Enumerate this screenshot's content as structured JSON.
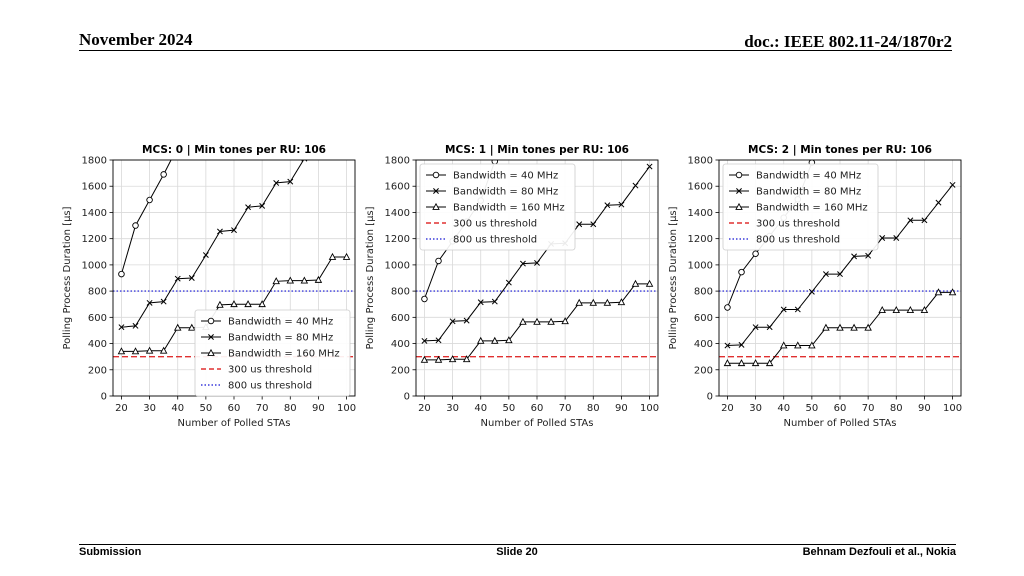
{
  "header": {
    "date": "November 2024",
    "doc": "doc.: IEEE 802.11-24/1870r2"
  },
  "footer": {
    "left": "Submission",
    "center": "Slide 20",
    "right": "Behnam Dezfouli et al., Nokia"
  },
  "chart_data": [
    {
      "type": "line",
      "title": "MCS: 0 | Min tones per RU: 106",
      "xlabel": "Number of Polled STAs",
      "ylabel": "Polling Process Duration [μs]",
      "xlim": [
        17,
        103
      ],
      "ylim": [
        0,
        1800
      ],
      "xticks": [
        20,
        30,
        40,
        50,
        60,
        70,
        80,
        90,
        100
      ],
      "yticks": [
        0,
        200,
        400,
        600,
        800,
        1000,
        1200,
        1400,
        1600,
        1800
      ],
      "grid": true,
      "legend_position": "lower-right",
      "series": [
        {
          "name": "Bandwidth = 40 MHz",
          "marker": "circle",
          "color": "#000000",
          "x": [
            20,
            25,
            30,
            35,
            40
          ],
          "y": [
            930,
            1300,
            1495,
            1690,
            1900
          ]
        },
        {
          "name": "Bandwidth = 80 MHz",
          "marker": "x",
          "color": "#000000",
          "x": [
            20,
            25,
            30,
            35,
            40,
            45,
            50,
            55,
            60,
            65,
            70,
            75,
            80,
            85
          ],
          "y": [
            525,
            535,
            710,
            720,
            895,
            900,
            1075,
            1255,
            1265,
            1440,
            1450,
            1625,
            1635,
            1810
          ]
        },
        {
          "name": "Bandwidth = 160 MHz",
          "marker": "triangle",
          "color": "#000000",
          "x": [
            20,
            25,
            30,
            35,
            40,
            45,
            50,
            55,
            60,
            65,
            70,
            75,
            80,
            85,
            90,
            95,
            100
          ],
          "y": [
            340,
            340,
            345,
            345,
            520,
            520,
            525,
            695,
            700,
            700,
            700,
            875,
            880,
            880,
            885,
            1060,
            1060
          ]
        }
      ],
      "thresholds": [
        {
          "name": "300 us threshold",
          "value": 300,
          "style": "dashed",
          "color": "#e03030"
        },
        {
          "name": "800 us threshold",
          "value": 800,
          "style": "dotted",
          "color": "#3b3bdb"
        }
      ]
    },
    {
      "type": "line",
      "title": "MCS: 1 | Min tones per RU: 106",
      "xlabel": "Number of Polled STAs",
      "ylabel": "Polling Process Duration [μs]",
      "xlim": [
        17,
        103
      ],
      "ylim": [
        0,
        1800
      ],
      "xticks": [
        20,
        30,
        40,
        50,
        60,
        70,
        80,
        90,
        100
      ],
      "yticks": [
        0,
        200,
        400,
        600,
        800,
        1000,
        1200,
        1400,
        1600,
        1800
      ],
      "grid": true,
      "legend_position": "upper-left",
      "series": [
        {
          "name": "Bandwidth = 40 MHz",
          "marker": "circle",
          "color": "#000000",
          "x": [
            20,
            25,
            30,
            35,
            40,
            45,
            50
          ],
          "y": [
            740,
            1030,
            1180,
            1330,
            1490,
            1790,
            1940
          ]
        },
        {
          "name": "Bandwidth = 80 MHz",
          "marker": "x",
          "color": "#000000",
          "x": [
            20,
            25,
            30,
            35,
            40,
            45,
            50,
            55,
            60,
            65,
            70,
            75,
            80,
            85,
            90,
            95,
            100
          ],
          "y": [
            420,
            425,
            570,
            575,
            715,
            720,
            865,
            1010,
            1015,
            1160,
            1165,
            1310,
            1310,
            1455,
            1460,
            1605,
            1750
          ]
        },
        {
          "name": "Bandwidth = 160 MHz",
          "marker": "triangle",
          "color": "#000000",
          "x": [
            20,
            25,
            30,
            35,
            40,
            45,
            50,
            55,
            60,
            65,
            70,
            75,
            80,
            85,
            90,
            95,
            100
          ],
          "y": [
            275,
            275,
            280,
            280,
            420,
            420,
            425,
            565,
            565,
            565,
            570,
            710,
            710,
            710,
            715,
            855,
            855
          ]
        }
      ],
      "thresholds": [
        {
          "name": "300 us threshold",
          "value": 300,
          "style": "dashed",
          "color": "#e03030"
        },
        {
          "name": "800 us threshold",
          "value": 800,
          "style": "dotted",
          "color": "#3b3bdb"
        }
      ]
    },
    {
      "type": "line",
      "title": "MCS: 2 | Min tones per RU: 106",
      "xlabel": "Number of Polled STAs",
      "ylabel": "Polling Process Duration [μs]",
      "xlim": [
        17,
        103
      ],
      "ylim": [
        0,
        1800
      ],
      "xticks": [
        20,
        30,
        40,
        50,
        60,
        70,
        80,
        90,
        100
      ],
      "yticks": [
        0,
        200,
        400,
        600,
        800,
        1000,
        1200,
        1400,
        1600,
        1800
      ],
      "grid": true,
      "legend_position": "upper-left",
      "series": [
        {
          "name": "Bandwidth = 40 MHz",
          "marker": "circle",
          "color": "#000000",
          "x": [
            20,
            25,
            30,
            35,
            40,
            45,
            50,
            55
          ],
          "y": [
            675,
            945,
            1085,
            1220,
            1360,
            1500,
            1780,
            1920
          ]
        },
        {
          "name": "Bandwidth = 80 MHz",
          "marker": "x",
          "color": "#000000",
          "x": [
            20,
            25,
            30,
            35,
            40,
            45,
            50,
            55,
            60,
            65,
            70,
            75,
            80,
            85,
            90,
            95,
            100
          ],
          "y": [
            385,
            390,
            525,
            525,
            660,
            660,
            795,
            930,
            930,
            1065,
            1070,
            1205,
            1205,
            1340,
            1340,
            1475,
            1610
          ]
        },
        {
          "name": "Bandwidth = 160 MHz",
          "marker": "triangle",
          "color": "#000000",
          "x": [
            20,
            25,
            30,
            35,
            40,
            45,
            50,
            55,
            60,
            65,
            70,
            75,
            80,
            85,
            90,
            95,
            100
          ],
          "y": [
            250,
            250,
            250,
            250,
            385,
            385,
            385,
            520,
            520,
            520,
            520,
            655,
            655,
            655,
            655,
            790,
            790
          ]
        }
      ],
      "thresholds": [
        {
          "name": "300 us threshold",
          "value": 300,
          "style": "dashed",
          "color": "#e03030"
        },
        {
          "name": "800 us threshold",
          "value": 800,
          "style": "dotted",
          "color": "#3b3bdb"
        }
      ]
    }
  ]
}
